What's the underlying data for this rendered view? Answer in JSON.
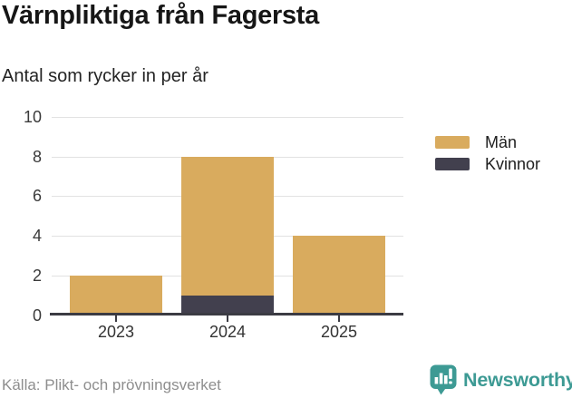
{
  "header": {
    "title": "Värnpliktiga från Fagersta",
    "subtitle": "Antal som rycker in per år"
  },
  "chart_data": {
    "type": "bar",
    "stacked": true,
    "title": "Värnpliktiga från Fagersta",
    "subtitle": "Antal som rycker in per år",
    "categories": [
      "2023",
      "2024",
      "2025"
    ],
    "series": [
      {
        "name": "Män",
        "color": "#d9ab5e",
        "values": [
          2,
          7,
          4
        ]
      },
      {
        "name": "Kvinnor",
        "color": "#42404e",
        "values": [
          0,
          1,
          0
        ]
      }
    ],
    "stack_bottom_to_top": [
      "Kvinnor",
      "Män"
    ],
    "totals": [
      2,
      8,
      4
    ],
    "xlabel": "",
    "ylabel": "",
    "ylim": [
      0,
      10
    ],
    "y_ticks": [
      0,
      2,
      4,
      6,
      8,
      10
    ],
    "grid": true,
    "legend_position": "right"
  },
  "footer": {
    "source": "Källa: Plikt- och prövningsverket",
    "brand_name": "Newsworthy"
  },
  "colors": {
    "men_bar": "#d9ab5e",
    "women_bar": "#42404e",
    "brand_teal": "#3d9a94",
    "axis": "#3b3b43",
    "gridline": "#e2e2e2",
    "source_text": "#8e8e8e"
  }
}
